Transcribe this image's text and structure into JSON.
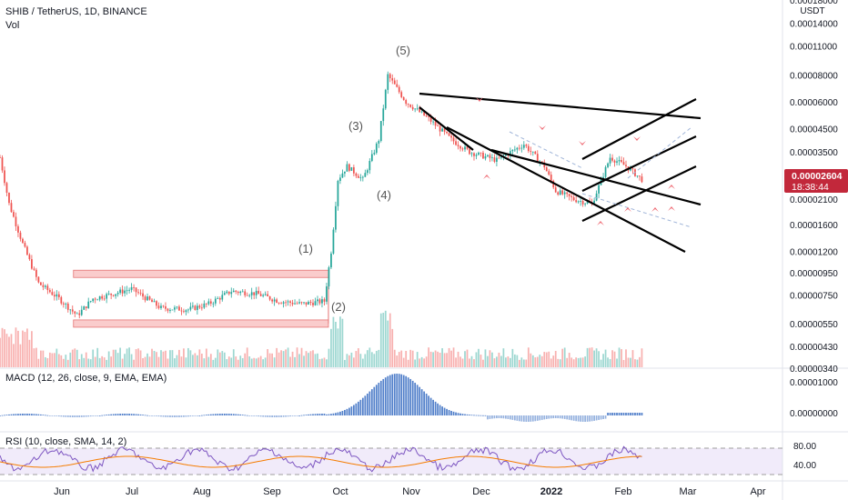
{
  "header": {
    "symbol_line": "SHIB / TetherUS, 1D, BINANCE",
    "sub_label": "Vol"
  },
  "price_axis": {
    "currency": "USDT",
    "ticks": [
      "0.00018000",
      "0.00014000",
      "0.00011000",
      "0.00008000",
      "0.00006000",
      "0.00004500",
      "0.00003500",
      "0.00002100",
      "0.00001600",
      "0.00001200",
      "0.00000950",
      "0.00000750",
      "0.00000550",
      "0.00000430",
      "0.00000340"
    ],
    "current_price": "0.00002604",
    "countdown": "18:38:44"
  },
  "macd": {
    "label": "MACD (12, 26, close, 9, EMA, EMA)",
    "ticks": [
      "0.00001000",
      "0.00000000"
    ]
  },
  "rsi": {
    "label": "RSI (10, close, SMA, 14, 2)",
    "ticks": [
      "80.00",
      "40.00"
    ]
  },
  "time_axis": {
    "labels": [
      "Jun",
      "Jul",
      "Aug",
      "Sep",
      "Oct",
      "Nov",
      "Dec",
      "2022",
      "Feb",
      "Mar",
      "Apr"
    ]
  },
  "annotations": {
    "waves": [
      "(1)",
      "(2)",
      "(3)",
      "(4)",
      "(5)"
    ]
  },
  "colors": {
    "up": "#26a69a",
    "down": "#ef5350",
    "price_badge": "#c2283b",
    "macd_hist": "#3f72c4",
    "rsi_line": "#7e57c2",
    "rsi_ma": "#f57c00",
    "range_box": "#f5a3a3",
    "marker": "#ef6c75"
  },
  "chart_data": {
    "type": "candlestick",
    "symbol": "SHIB / TetherUS",
    "interval": "1D",
    "exchange": "BINANCE",
    "scale": "log",
    "price_unit": "USDT",
    "x_range": [
      "2021-05-10",
      "2022-04-20"
    ],
    "y_range": [
      3.4e-06,
      0.00018
    ],
    "price_path": [
      [
        "2021-05-10",
        3.3e-05
      ],
      [
        "2021-05-14",
        2e-05
      ],
      [
        "2021-05-20",
        1.3e-05
      ],
      [
        "2021-05-27",
        8.5e-06
      ],
      [
        "2021-06-05",
        7.2e-06
      ],
      [
        "2021-06-13",
        6e-06
      ],
      [
        "2021-06-20",
        7.2e-06
      ],
      [
        "2021-06-27",
        7.5e-06
      ],
      [
        "2021-07-07",
        8e-06
      ],
      [
        "2021-07-20",
        6.5e-06
      ],
      [
        "2021-08-01",
        6.4e-06
      ],
      [
        "2021-08-10",
        6.8e-06
      ],
      [
        "2021-08-20",
        7.8e-06
      ],
      [
        "2021-08-31",
        7.6e-06
      ],
      [
        "2021-09-10",
        7e-06
      ],
      [
        "2021-09-20",
        6.8e-06
      ],
      [
        "2021-09-30",
        7e-06
      ],
      [
        "2021-10-03",
        1.2e-05
      ],
      [
        "2021-10-06",
        2.6e-05
      ],
      [
        "2021-10-10",
        3e-05
      ],
      [
        "2021-10-17",
        2.6e-05
      ],
      [
        "2021-10-24",
        4e-05
      ],
      [
        "2021-10-28",
        8e-05
      ],
      [
        "2021-11-05",
        6e-05
      ],
      [
        "2021-11-15",
        5e-05
      ],
      [
        "2021-11-25",
        4e-05
      ],
      [
        "2021-12-03",
        3.5e-05
      ],
      [
        "2021-12-15",
        3.2e-05
      ],
      [
        "2021-12-27",
        3.8e-05
      ],
      [
        "2022-01-05",
        3e-05
      ],
      [
        "2022-01-10",
        2.3e-05
      ],
      [
        "2022-01-18",
        2.1e-05
      ],
      [
        "2022-01-26",
        2e-05
      ],
      [
        "2022-02-03",
        3.3e-05
      ],
      [
        "2022-02-10",
        3e-05
      ],
      [
        "2022-02-17",
        2.6e-05
      ]
    ],
    "support_resistance_box": {
      "high": 9.4e-06,
      "low": 5.5e-06,
      "from": "2021-06-13",
      "to": "2021-10-01"
    },
    "elliott_waves": [
      {
        "label": "(1)",
        "date": "2021-09-20"
      },
      {
        "label": "(2)",
        "date": "2021-09-30"
      },
      {
        "label": "(3)",
        "date": "2021-10-07"
      },
      {
        "label": "(4)",
        "date": "2021-10-17"
      },
      {
        "label": "(5)",
        "date": "2021-10-28"
      }
    ],
    "indicators": [
      "Vol",
      "MACD (12, 26, close, 9, EMA, EMA)",
      "RSI (10, close, SMA, 14, 2)"
    ],
    "rsi_levels": [
      80,
      40
    ]
  }
}
